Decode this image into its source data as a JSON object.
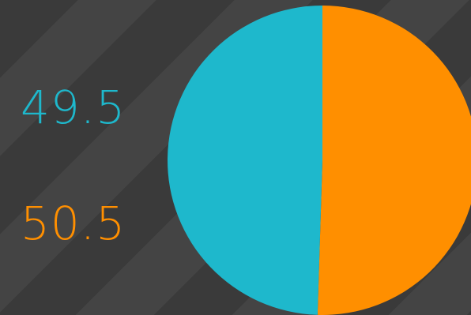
{
  "chart_data": {
    "type": "pie",
    "title": "",
    "slices": [
      {
        "label": "49.5",
        "value": 49.5,
        "color": "#1eb8cc"
      },
      {
        "label": "50.5",
        "value": 50.5,
        "color": "#ff8f00"
      }
    ]
  },
  "colors": {
    "background_dark": "#3a3a3a",
    "background_light": "#444444"
  }
}
